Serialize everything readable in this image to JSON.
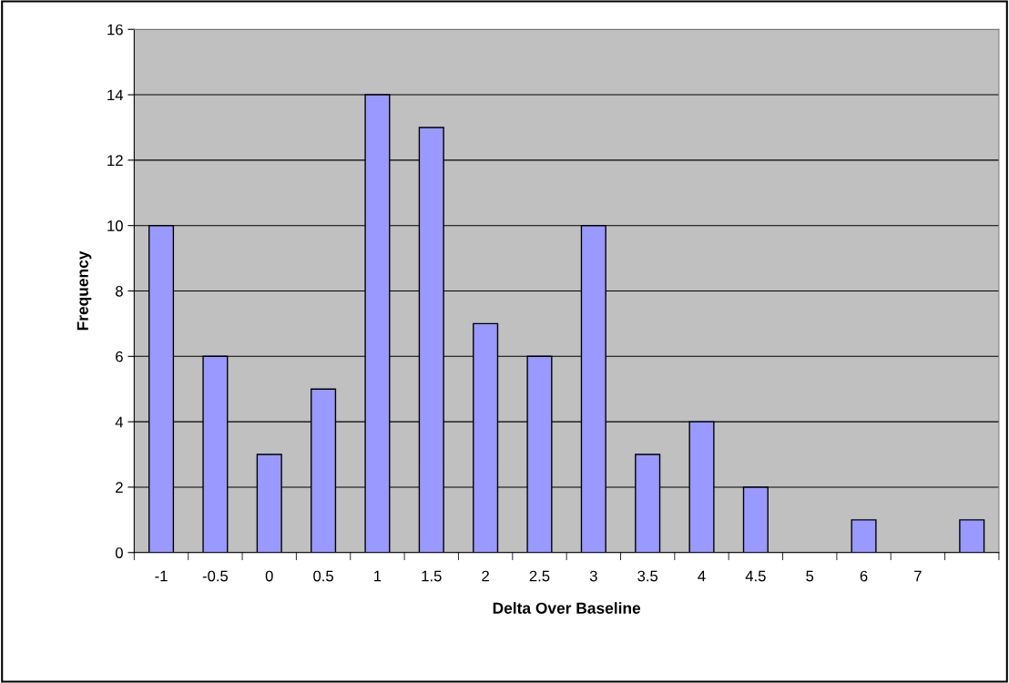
{
  "chart_data": {
    "type": "bar",
    "xlabel": "Delta Over Baseline",
    "ylabel": "Frequency",
    "categories": [
      "-1",
      "-0.5",
      "0",
      "0.5",
      "1",
      "1.5",
      "2",
      "2.5",
      "3",
      "3.5",
      "4",
      "4.5",
      "5",
      "6",
      "7",
      null
    ],
    "values": [
      10,
      6,
      3,
      5,
      14,
      13,
      7,
      6,
      10,
      3,
      4,
      2,
      0,
      1,
      0,
      1
    ],
    "color": "#9999ff",
    "ylim": [
      0,
      16
    ],
    "yticks": [
      0,
      2,
      4,
      6,
      8,
      10,
      12,
      14,
      16
    ],
    "grid": "y",
    "legend": false
  }
}
